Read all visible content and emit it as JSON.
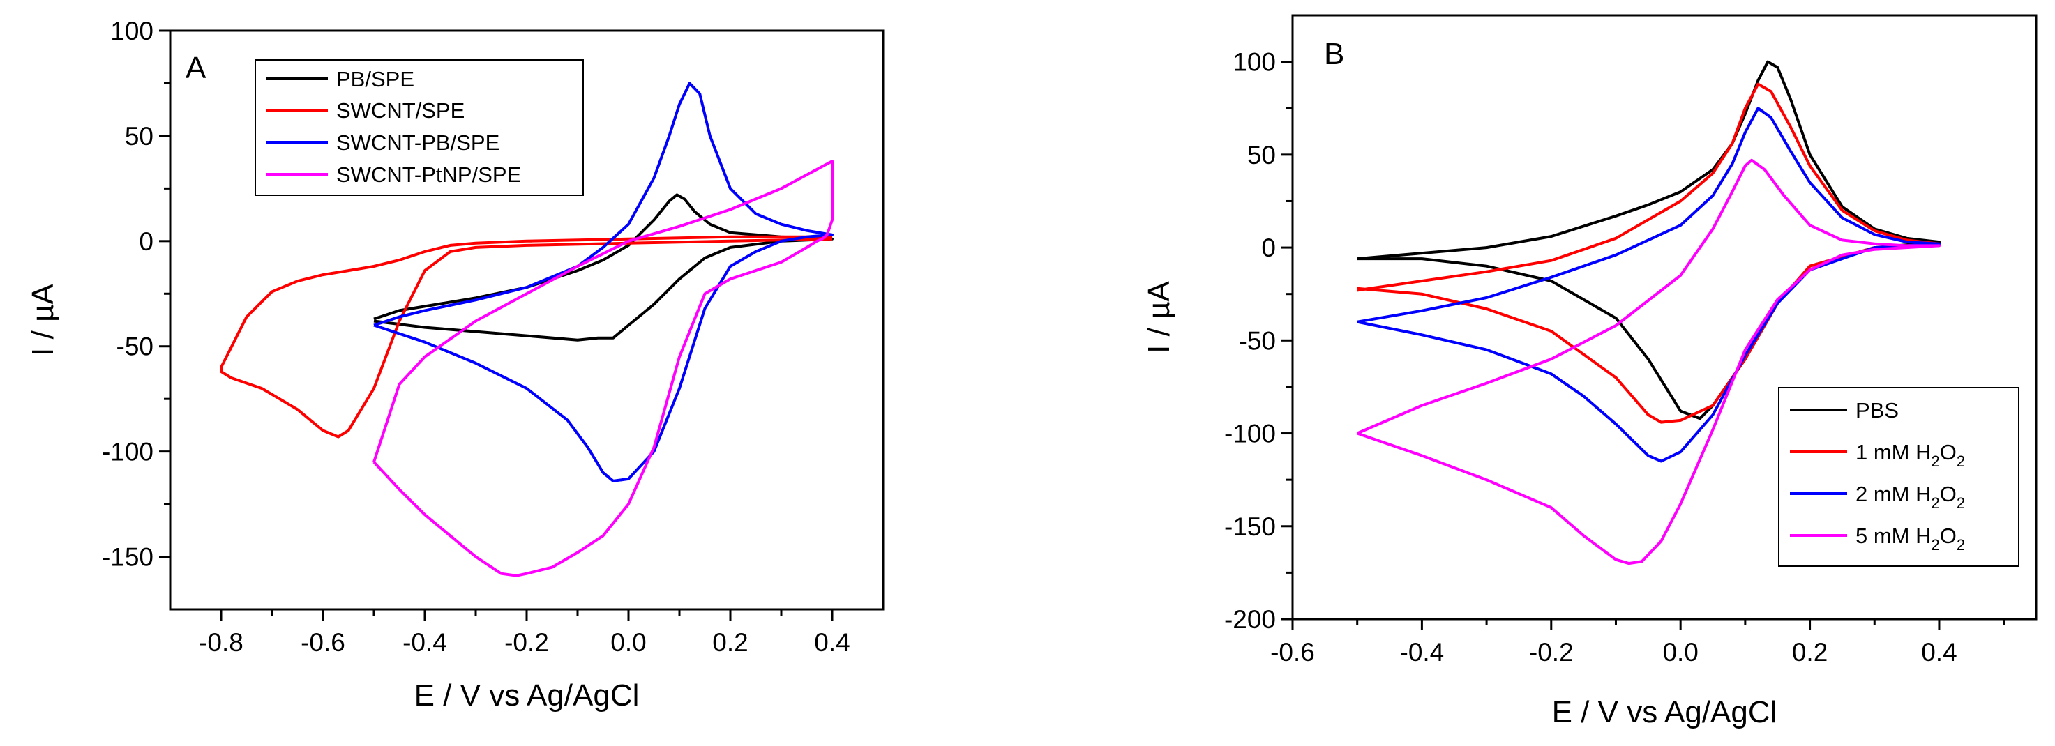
{
  "chart_data": [
    {
      "type": "line",
      "panel_label": "A",
      "xlabel": "E / V vs Ag/AgCl",
      "ylabel": "I / µA",
      "xlim": [
        -0.9,
        0.5
      ],
      "ylim": [
        -175,
        100
      ],
      "xticks": [
        -0.8,
        -0.6,
        -0.4,
        -0.2,
        0.0,
        0.2,
        0.4
      ],
      "xtick_labels": [
        "-0.8",
        "-0.6",
        "-0.4",
        "-0.2",
        "0.0",
        "0.2",
        "0.4"
      ],
      "yticks": [
        -150,
        -100,
        -50,
        0,
        50,
        100
      ],
      "ytick_labels": [
        "-150",
        "-100",
        "-50",
        "0",
        "50",
        "100"
      ],
      "legend": {
        "position": "top-left",
        "entries": [
          {
            "label": "PB/SPE",
            "color": "#000000"
          },
          {
            "label": "SWCNT/SPE",
            "color": "#ff0000"
          },
          {
            "label": "SWCNT-PB/SPE",
            "color": "#0000ff"
          },
          {
            "label": "SWCNT-PtNP/SPE",
            "color": "#ff00ff"
          }
        ]
      },
      "series": [
        {
          "name": "PB/SPE",
          "color": "#000000",
          "x": [
            -0.5,
            -0.45,
            -0.4,
            -0.3,
            -0.2,
            -0.1,
            -0.05,
            0.0,
            0.05,
            0.08,
            0.095,
            0.11,
            0.13,
            0.16,
            0.2,
            0.3,
            0.4,
            0.4,
            0.3,
            0.2,
            0.15,
            0.1,
            0.05,
            0.0,
            -0.03,
            -0.06,
            -0.1,
            -0.2,
            -0.3,
            -0.4,
            -0.5
          ],
          "y": [
            -37,
            -33,
            -31,
            -27,
            -22,
            -14,
            -9,
            -2,
            10,
            19,
            22,
            20,
            14,
            8,
            4,
            2,
            1,
            1,
            0,
            -3,
            -8,
            -18,
            -30,
            -40,
            -46,
            -46,
            -47,
            -45,
            -43,
            -41,
            -38
          ]
        },
        {
          "name": "SWCNT/SPE",
          "color": "#ff0000",
          "x": [
            0.4,
            0.2,
            0.0,
            -0.2,
            -0.3,
            -0.35,
            -0.4,
            -0.45,
            -0.5,
            -0.55,
            -0.6,
            -0.65,
            -0.7,
            -0.75,
            -0.8,
            -0.8,
            -0.78,
            -0.72,
            -0.65,
            -0.62,
            -0.6,
            -0.57,
            -0.55,
            -0.5,
            -0.45,
            -0.4,
            -0.35,
            -0.3,
            -0.2,
            0.0,
            0.2,
            0.4
          ],
          "y": [
            2,
            2,
            1,
            0,
            -1,
            -2,
            -5,
            -9,
            -12,
            -14,
            -16,
            -19,
            -24,
            -36,
            -60,
            -62,
            -65,
            -70,
            -80,
            -86,
            -90,
            -93,
            -90,
            -70,
            -38,
            -14,
            -5,
            -3,
            -2,
            -1,
            0,
            1
          ]
        },
        {
          "name": "SWCNT-PB/SPE",
          "color": "#0000ff",
          "x": [
            -0.5,
            -0.45,
            -0.4,
            -0.3,
            -0.2,
            -0.1,
            -0.05,
            0.0,
            0.05,
            0.08,
            0.1,
            0.12,
            0.14,
            0.16,
            0.2,
            0.25,
            0.3,
            0.35,
            0.4,
            0.4,
            0.35,
            0.3,
            0.25,
            0.2,
            0.15,
            0.1,
            0.05,
            0.0,
            -0.03,
            -0.05,
            -0.08,
            -0.12,
            -0.2,
            -0.3,
            -0.4,
            -0.5
          ],
          "y": [
            -40,
            -36,
            -33,
            -28,
            -22,
            -12,
            -3,
            8,
            30,
            50,
            65,
            75,
            70,
            50,
            25,
            13,
            8,
            5,
            3,
            3,
            2,
            0,
            -5,
            -12,
            -32,
            -70,
            -100,
            -113,
            -114,
            -110,
            -98,
            -85,
            -70,
            -58,
            -48,
            -40
          ]
        },
        {
          "name": "SWCNT-PtNP/SPE",
          "color": "#ff00ff",
          "x": [
            -0.5,
            -0.45,
            -0.4,
            -0.3,
            -0.2,
            -0.1,
            0.0,
            0.1,
            0.2,
            0.3,
            0.4,
            0.4,
            0.39,
            0.38,
            0.37,
            0.35,
            0.3,
            0.2,
            0.15,
            0.1,
            0.05,
            0.0,
            -0.05,
            -0.1,
            -0.15,
            -0.2,
            -0.22,
            -0.25,
            -0.3,
            -0.35,
            -0.4,
            -0.45,
            -0.5
          ],
          "y": [
            -105,
            -68,
            -55,
            -38,
            -25,
            -12,
            0,
            7,
            15,
            25,
            38,
            10,
            3,
            1,
            0,
            -3,
            -10,
            -18,
            -25,
            -55,
            -98,
            -125,
            -140,
            -148,
            -155,
            -158,
            -159,
            -158,
            -150,
            -140,
            -130,
            -118,
            -105
          ]
        }
      ]
    },
    {
      "type": "line",
      "panel_label": "B",
      "xlabel": "E / V vs Ag/AgCl",
      "ylabel": "I / µA",
      "xlim": [
        -0.6,
        0.55
      ],
      "ylim": [
        -200,
        125
      ],
      "xticks": [
        -0.6,
        -0.4,
        -0.2,
        0.0,
        0.2,
        0.4
      ],
      "xtick_labels": [
        "-0.6",
        "-0.4",
        "-0.2",
        "0.0",
        "0.2",
        "0.4"
      ],
      "yticks": [
        -200,
        -150,
        -100,
        -50,
        0,
        50,
        100
      ],
      "ytick_labels": [
        "-200",
        "-150",
        "-100",
        "-50",
        "0",
        "50",
        "100"
      ],
      "legend": {
        "position": "bottom-right",
        "entries": [
          {
            "label": "PBS",
            "color": "#000000"
          },
          {
            "label": "1 mM H",
            "sub": "2",
            "tail": "O",
            "sub2": "2",
            "color": "#ff0000"
          },
          {
            "label": "2 mM H",
            "sub": "2",
            "tail": "O",
            "sub2": "2",
            "color": "#0000ff"
          },
          {
            "label": "5 mM H",
            "sub": "2",
            "tail": "O",
            "sub2": "2",
            "color": "#ff00ff"
          }
        ]
      },
      "series": [
        {
          "name": "PBS",
          "color": "#000000",
          "x": [
            -0.5,
            -0.4,
            -0.3,
            -0.2,
            -0.1,
            -0.05,
            0.0,
            0.05,
            0.08,
            0.1,
            0.12,
            0.135,
            0.15,
            0.17,
            0.2,
            0.25,
            0.3,
            0.35,
            0.4,
            0.4,
            0.3,
            0.2,
            0.15,
            0.1,
            0.05,
            0.03,
            0.0,
            -0.05,
            -0.1,
            -0.2,
            -0.3,
            -0.4,
            -0.5
          ],
          "y": [
            -6,
            -3,
            0,
            6,
            17,
            23,
            30,
            42,
            56,
            72,
            90,
            100,
            97,
            80,
            50,
            22,
            10,
            5,
            3,
            3,
            0,
            -10,
            -30,
            -60,
            -85,
            -92,
            -88,
            -60,
            -38,
            -18,
            -10,
            -6,
            -6
          ]
        },
        {
          "name": "1 mM H2O2",
          "color": "#ff0000",
          "x": [
            -0.5,
            -0.4,
            -0.3,
            -0.2,
            -0.1,
            -0.05,
            0.0,
            0.05,
            0.08,
            0.1,
            0.12,
            0.14,
            0.17,
            0.2,
            0.25,
            0.3,
            0.35,
            0.4,
            0.4,
            0.3,
            0.2,
            0.15,
            0.1,
            0.05,
            0.0,
            -0.03,
            -0.05,
            -0.1,
            -0.2,
            -0.3,
            -0.4,
            -0.5
          ],
          "y": [
            -23,
            -18,
            -13,
            -7,
            5,
            15,
            25,
            40,
            56,
            75,
            88,
            84,
            65,
            44,
            20,
            9,
            4,
            2,
            2,
            0,
            -10,
            -30,
            -60,
            -85,
            -93,
            -94,
            -90,
            -70,
            -45,
            -33,
            -25,
            -22
          ]
        },
        {
          "name": "2 mM H2O2",
          "color": "#0000ff",
          "x": [
            -0.5,
            -0.4,
            -0.3,
            -0.2,
            -0.1,
            0.0,
            0.05,
            0.08,
            0.1,
            0.12,
            0.14,
            0.17,
            0.2,
            0.25,
            0.3,
            0.35,
            0.4,
            0.4,
            0.3,
            0.2,
            0.15,
            0.1,
            0.05,
            0.0,
            -0.03,
            -0.05,
            -0.1,
            -0.15,
            -0.2,
            -0.3,
            -0.4,
            -0.5
          ],
          "y": [
            -40,
            -34,
            -27,
            -16,
            -4,
            12,
            28,
            45,
            62,
            75,
            70,
            52,
            35,
            16,
            7,
            3,
            2,
            2,
            0,
            -12,
            -30,
            -58,
            -90,
            -110,
            -115,
            -112,
            -95,
            -80,
            -68,
            -55,
            -47,
            -40
          ]
        },
        {
          "name": "5 mM H2O2",
          "color": "#ff00ff",
          "x": [
            -0.5,
            -0.4,
            -0.3,
            -0.2,
            -0.1,
            0.0,
            0.05,
            0.08,
            0.1,
            0.11,
            0.13,
            0.16,
            0.2,
            0.25,
            0.3,
            0.35,
            0.4,
            0.4,
            0.3,
            0.25,
            0.2,
            0.15,
            0.1,
            0.05,
            0.0,
            -0.03,
            -0.06,
            -0.08,
            -0.1,
            -0.15,
            -0.2,
            -0.3,
            -0.4,
            -0.5
          ],
          "y": [
            -100,
            -85,
            -73,
            -60,
            -42,
            -15,
            10,
            30,
            44,
            47,
            42,
            28,
            12,
            4,
            2,
            1,
            1,
            1,
            -1,
            -4,
            -12,
            -28,
            -55,
            -98,
            -138,
            -158,
            -169,
            -170,
            -168,
            -155,
            -140,
            -125,
            -112,
            -100
          ]
        }
      ]
    }
  ]
}
